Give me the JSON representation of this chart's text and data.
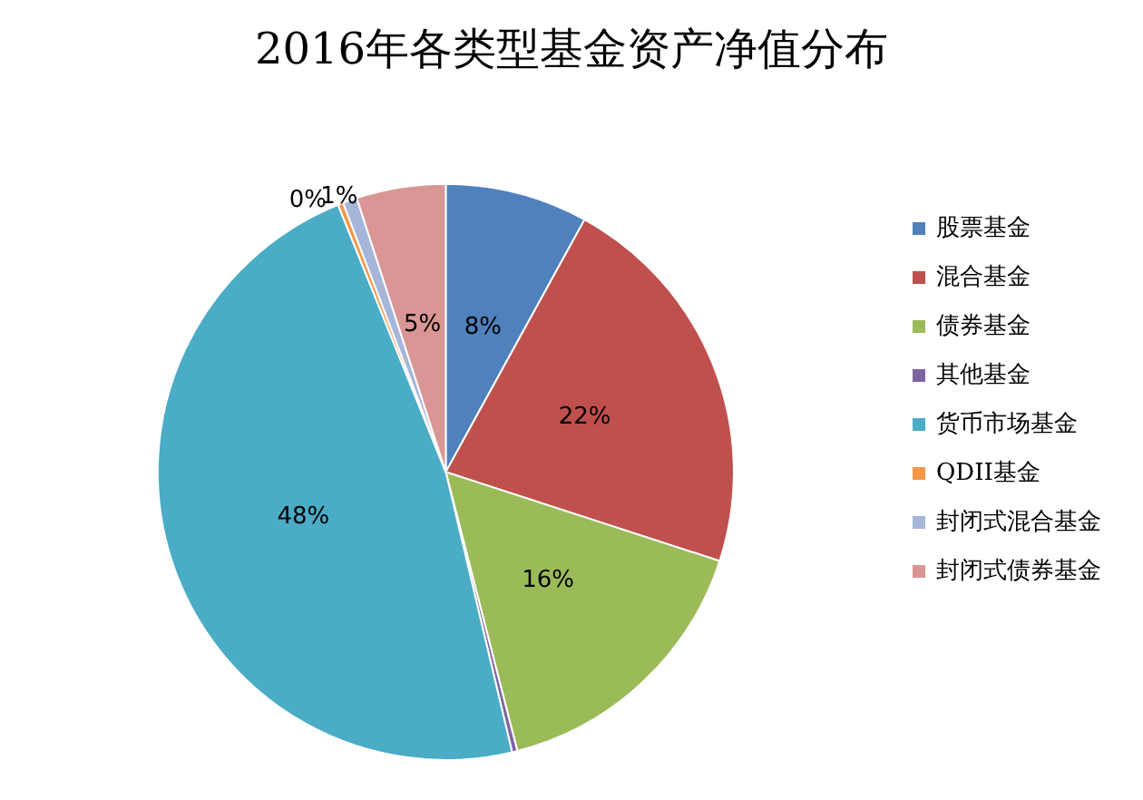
{
  "chart_data": {
    "type": "pie",
    "title": "2016年各类型基金资产净值分布",
    "categories": [
      "股票基金",
      "混合基金",
      "债券基金",
      "其他基金",
      "货币市场基金",
      "QDII基金",
      "封闭式混合基金",
      "封闭式债券基金"
    ],
    "values": [
      8,
      22,
      16,
      0.3,
      47.6,
      0.3,
      0.8,
      5
    ],
    "value_labels": [
      "8%",
      "22%",
      "16%",
      null,
      "48%",
      "0%",
      "1%",
      "5%"
    ],
    "colors": [
      "#4f81bd",
      "#c0504d",
      "#9bbb59",
      "#8064a2",
      "#4bacc6",
      "#f79646",
      "#a5b6d9",
      "#d99694"
    ],
    "legend": "right"
  }
}
